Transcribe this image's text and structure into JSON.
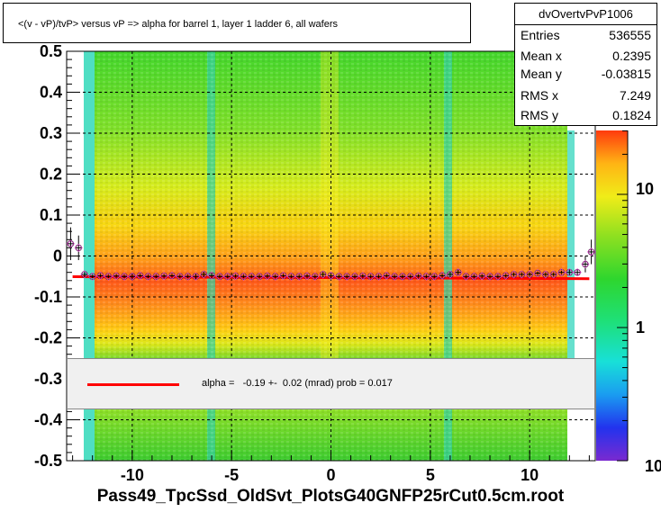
{
  "title": "<(v - vP)/tvP> versus  vP => alpha for barrel 1, layer 1 ladder 6, all wafers",
  "stats": {
    "name": "dvOvertvPvP1006",
    "rows": [
      {
        "label": "Entries",
        "value": "536555"
      },
      {
        "label": "Mean x",
        "value": "0.2395"
      },
      {
        "label": "Mean y",
        "value": "-0.03815"
      },
      {
        "label": "RMS x",
        "value": "7.249"
      },
      {
        "label": "RMS y",
        "value": "0.1824"
      }
    ]
  },
  "fit_legend": "alpha =   -0.19 +-  0.02 (mrad) prob = 0.017",
  "x_title": "Pass49_TpcSsd_OldSvt_PlotsG40GNFP25rCut0.5cm.root",
  "colors": {
    "fit_line": "#ff0000",
    "profile_marker": "#000000",
    "background": "#ffffff"
  },
  "chart_data": {
    "type": "heatmap",
    "xlim": [
      -13.3,
      13.3
    ],
    "ylim": [
      -0.5,
      0.5
    ],
    "x_ticks": [
      -10,
      -5,
      0,
      5,
      10
    ],
    "x_tick_labels": [
      "-10",
      "-5",
      "0",
      "5",
      "10"
    ],
    "y_ticks": [
      -0.5,
      -0.4,
      -0.3,
      -0.2,
      -0.1,
      0,
      0.1,
      0.2,
      0.3,
      0.4,
      0.5
    ],
    "y_tick_labels": [
      "-0.5",
      "-0.4",
      "-0.3",
      "-0.2",
      "-0.1",
      "0",
      "0.1",
      "0.2",
      "0.3",
      "0.4",
      "0.5"
    ],
    "grid": true,
    "colorbar": {
      "scale": "log",
      "tick_labels": [
        "10",
        "1",
        "10"
      ]
    },
    "fit_line": {
      "slope_mrad": -0.19,
      "intercept": -0.053,
      "x_range": [
        -13,
        13
      ]
    },
    "profile": {
      "x": [
        -13.1,
        -12.7,
        -12.4,
        -12.0,
        -11.6,
        -11.2,
        -10.8,
        -10.4,
        -10.0,
        -9.6,
        -9.2,
        -8.8,
        -8.4,
        -8.0,
        -7.6,
        -7.2,
        -6.8,
        -6.4,
        -6.0,
        -5.6,
        -5.2,
        -4.8,
        -4.4,
        -4.0,
        -3.6,
        -3.2,
        -2.8,
        -2.4,
        -2.0,
        -1.6,
        -1.2,
        -0.8,
        -0.4,
        0.0,
        0.4,
        0.8,
        1.2,
        1.6,
        2.0,
        2.4,
        2.8,
        3.2,
        3.6,
        4.0,
        4.4,
        4.8,
        5.2,
        5.6,
        6.0,
        6.4,
        6.8,
        7.2,
        7.6,
        8.0,
        8.4,
        8.8,
        9.2,
        9.6,
        10.0,
        10.4,
        10.8,
        11.2,
        11.6,
        12.0,
        12.4,
        12.8,
        13.1
      ],
      "y": [
        0.03,
        0.02,
        -0.045,
        -0.05,
        -0.048,
        -0.05,
        -0.049,
        -0.05,
        -0.05,
        -0.048,
        -0.05,
        -0.05,
        -0.049,
        -0.048,
        -0.05,
        -0.05,
        -0.05,
        -0.045,
        -0.048,
        -0.05,
        -0.05,
        -0.049,
        -0.05,
        -0.05,
        -0.05,
        -0.049,
        -0.05,
        -0.048,
        -0.05,
        -0.05,
        -0.049,
        -0.05,
        -0.045,
        -0.048,
        -0.05,
        -0.05,
        -0.05,
        -0.049,
        -0.05,
        -0.05,
        -0.048,
        -0.05,
        -0.05,
        -0.05,
        -0.049,
        -0.05,
        -0.05,
        -0.048,
        -0.045,
        -0.04,
        -0.05,
        -0.05,
        -0.049,
        -0.05,
        -0.05,
        -0.048,
        -0.045,
        -0.045,
        -0.045,
        -0.042,
        -0.045,
        -0.045,
        -0.04,
        -0.04,
        -0.04,
        -0.02,
        0.01
      ],
      "err": [
        0.04,
        0.03,
        0.005,
        0.004,
        0.004,
        0.004,
        0.004,
        0.004,
        0.004,
        0.004,
        0.004,
        0.004,
        0.004,
        0.004,
        0.004,
        0.004,
        0.006,
        0.008,
        0.006,
        0.004,
        0.004,
        0.004,
        0.004,
        0.004,
        0.004,
        0.004,
        0.004,
        0.004,
        0.004,
        0.004,
        0.004,
        0.004,
        0.006,
        0.006,
        0.004,
        0.004,
        0.004,
        0.004,
        0.004,
        0.004,
        0.004,
        0.004,
        0.004,
        0.004,
        0.004,
        0.004,
        0.004,
        0.004,
        0.006,
        0.008,
        0.004,
        0.004,
        0.004,
        0.004,
        0.004,
        0.004,
        0.004,
        0.004,
        0.004,
        0.004,
        0.004,
        0.004,
        0.004,
        0.006,
        0.008,
        0.02,
        0.03
      ]
    }
  }
}
